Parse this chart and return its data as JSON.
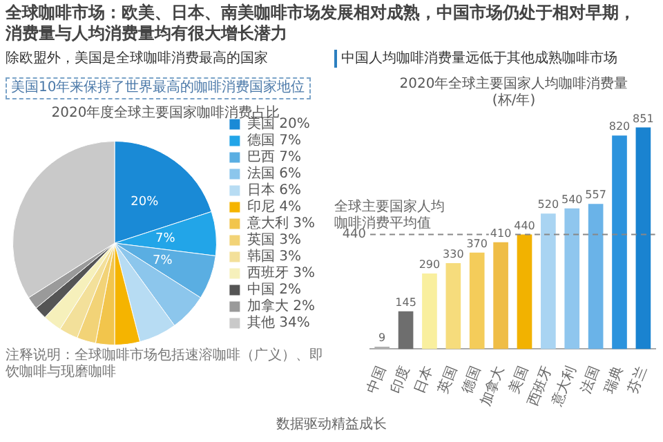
{
  "chart_data": [
    {
      "type": "other",
      "title": "全球咖啡市场：欧美、日本、南美咖啡市场发展相对成熟，中国市场仍处于相对早期，消费量与人均消费量均有很大增长潜力",
      "annotations": [
        "数据驱动精益成长"
      ]
    },
    {
      "type": "pie",
      "title": "2020年度全球主要国家咖啡消费占比",
      "categories": [
        "美国 20%",
        "德国 7%",
        "巴西 7%",
        "法国 6%",
        "日本 6%",
        "印尼 4%",
        "意大利 3%",
        "英国 3%",
        "韩国 3%",
        "西班牙 3%",
        "中国 2%",
        "加拿大 2%",
        "其他 34%"
      ],
      "values": [
        20,
        7,
        7,
        6,
        6,
        4,
        3,
        3,
        3,
        3,
        2,
        2,
        34
      ],
      "colors": [
        "#1a8ad6",
        "#22a5e8",
        "#5aaee2",
        "#8cc6ec",
        "#b7dcf3",
        "#f5b400",
        "#f2c54c",
        "#f2d377",
        "#f3e09a",
        "#f6f0bb",
        "#555555",
        "#9a9a9a",
        "#c9c9c9"
      ],
      "value_labels": [
        "20%",
        "7%",
        "7%",
        null,
        null,
        null,
        null,
        null,
        null,
        null,
        null,
        null,
        null
      ],
      "legend": "right",
      "annotations": [
        "除欧盟外，美国是全球咖啡消费最高的国家",
        "美国10年来保持了世界最高的咖啡消费国家地位",
        "注释说明：全球咖啡市场包括速溶咖啡（广义）、即饮咖啡与现磨咖啡"
      ]
    },
    {
      "type": "bar",
      "title": "2020年全球主要国家人均咖啡消费量",
      "subtitle": "(杯/年)",
      "categories": [
        "中国",
        "印度",
        "日本",
        "英国",
        "德国",
        "加拿大",
        "美国",
        "西班牙",
        "意大利",
        "法国",
        "瑞典",
        "芬兰"
      ],
      "values": [
        9,
        145,
        290,
        330,
        370,
        410,
        440,
        520,
        540,
        557,
        820,
        851
      ],
      "colors": [
        "#b0b0b0",
        "#6e6e6e",
        "#f9ef9e",
        "#f6dc7c",
        "#f4cc5a",
        "#efbd46",
        "#f2b200",
        "#a9d4f2",
        "#8fc6ee",
        "#6ab3e8",
        "#2c93dd",
        "#1a83d0"
      ],
      "data_labels": true,
      "ref_lines": [
        {
          "axis": "y",
          "value": 440,
          "label": "全球主要国家人均咖啡消费平均值",
          "color": "#888888",
          "line_style": "dashed"
        }
      ],
      "annotations": [
        "中国人均咖啡消费量远低于其他成熟咖啡市场",
        "440"
      ]
    }
  ]
}
